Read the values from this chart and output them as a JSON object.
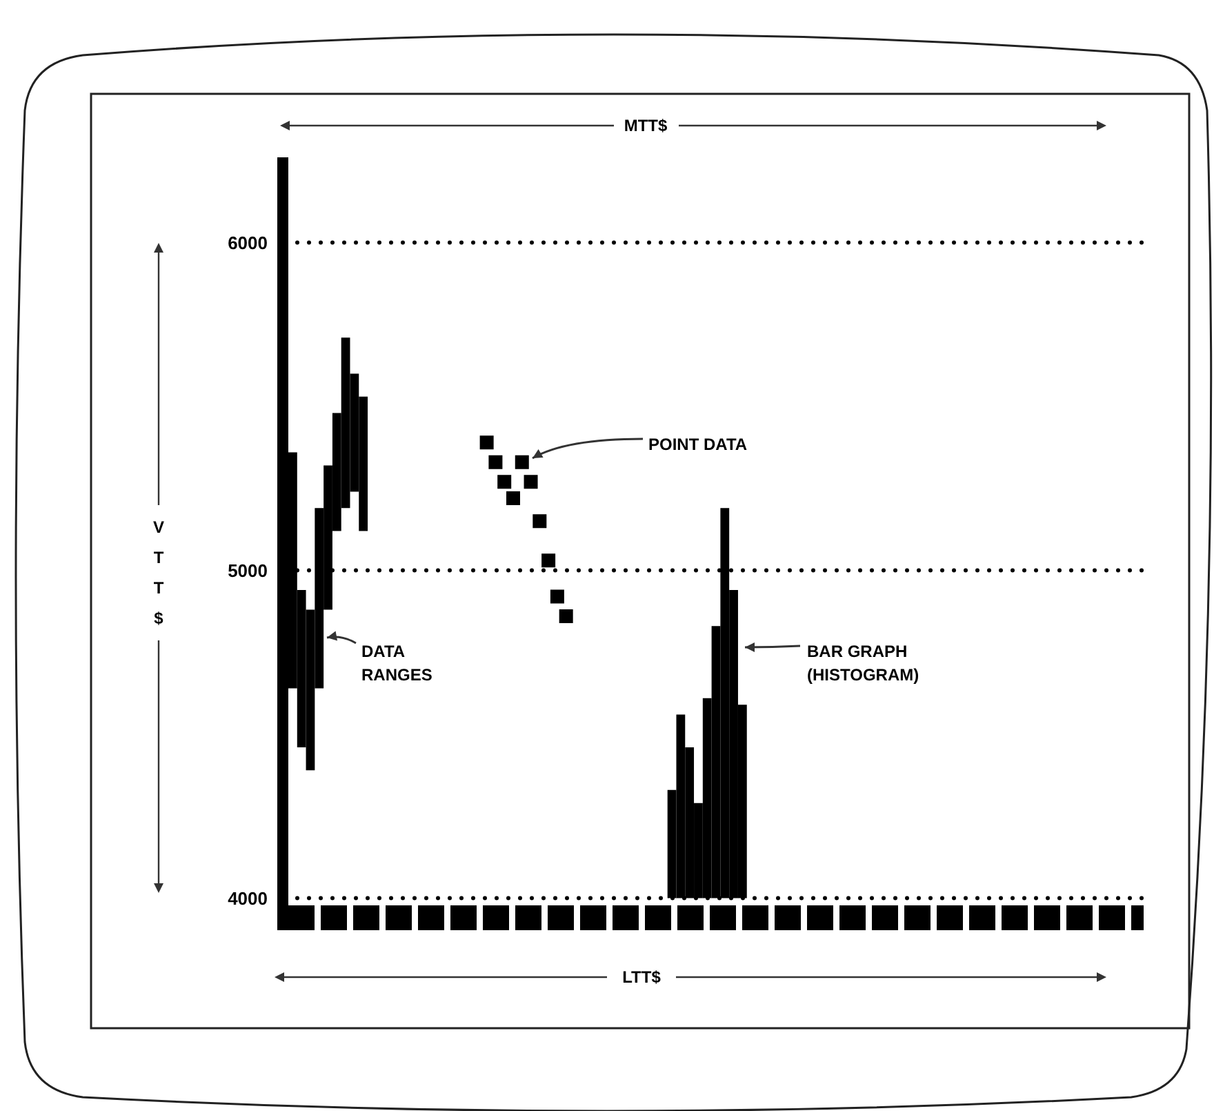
{
  "chart_data": {
    "type": "bar",
    "title": "MTT$",
    "xlabel": "LTT$",
    "ylabel": "VTT$",
    "categories": [
      null,
      null,
      null,
      null,
      null,
      null,
      null,
      null,
      null,
      null,
      null,
      null,
      null,
      null,
      null,
      null,
      null,
      null,
      null,
      null,
      null,
      null,
      null,
      null,
      null,
      null,
      null,
      null,
      null,
      null,
      null,
      null,
      null,
      null,
      null,
      null,
      null,
      null,
      null,
      null,
      null,
      null,
      null,
      null,
      null,
      null,
      null,
      null,
      null,
      null,
      null,
      null,
      null,
      null,
      null,
      null,
      null,
      null,
      null,
      null,
      null,
      null,
      null,
      null,
      null,
      null,
      null,
      null,
      null,
      null,
      null,
      null,
      null,
      null,
      null,
      null,
      null,
      null,
      null,
      null,
      null,
      null,
      null,
      null,
      null,
      null,
      null,
      null,
      null,
      null,
      null,
      null,
      null,
      null,
      null,
      null,
      null
    ],
    "series": [
      {
        "type": "bar",
        "color": "#000000",
        "base": [
          4640,
          4460,
          4390,
          4640,
          4880,
          5120,
          5190,
          5240,
          5120,
          null,
          null,
          null,
          null,
          null,
          null,
          null,
          null,
          null,
          null,
          null,
          null,
          null,
          null,
          null,
          null,
          null,
          null,
          null,
          null,
          null,
          null,
          null,
          null,
          null,
          null,
          null,
          null,
          null,
          null,
          null,
          null,
          null,
          null,
          4000,
          4000,
          4000,
          4000,
          4000,
          4000,
          4000,
          4000,
          4000,
          null,
          null,
          null,
          null,
          null,
          null,
          null,
          null,
          null,
          null,
          null,
          null,
          null,
          null,
          null,
          null,
          null,
          null,
          null,
          null,
          null,
          null,
          null,
          null,
          null,
          null,
          null,
          null,
          null,
          null,
          null,
          null,
          null,
          null,
          null,
          null,
          null,
          null,
          null,
          null,
          null,
          null,
          null,
          null,
          null
        ],
        "values": [
          720,
          480,
          490,
          550,
          440,
          360,
          520,
          360,
          410,
          null,
          null,
          null,
          null,
          null,
          null,
          null,
          null,
          null,
          null,
          null,
          null,
          null,
          null,
          null,
          null,
          null,
          null,
          null,
          null,
          null,
          null,
          null,
          null,
          null,
          null,
          null,
          null,
          null,
          null,
          null,
          null,
          null,
          null,
          330,
          560,
          460,
          290,
          610,
          830,
          1190,
          940,
          590,
          null,
          null,
          null,
          null,
          null,
          null,
          null,
          null,
          null,
          null,
          null,
          null,
          null,
          null,
          null,
          null,
          null,
          null,
          null,
          null,
          null,
          null,
          null,
          null,
          null,
          null,
          null,
          null,
          null,
          null,
          null,
          null,
          null,
          null,
          null,
          null,
          null,
          null,
          null,
          null,
          null,
          null,
          null,
          null,
          null
        ]
      },
      {
        "type": "scatter",
        "color": "#000000",
        "marker": "square",
        "values": [
          null,
          null,
          null,
          null,
          null,
          null,
          null,
          null,
          null,
          null,
          null,
          null,
          null,
          null,
          null,
          null,
          null,
          null,
          null,
          null,
          null,
          null,
          5390,
          5330,
          5270,
          5220,
          5330,
          5270,
          5150,
          5030,
          4920,
          4860,
          null,
          null,
          null,
          null,
          null,
          null,
          null,
          null,
          null,
          null,
          null,
          null,
          null,
          null,
          null,
          null,
          null,
          null,
          null,
          null,
          null,
          null,
          null,
          null,
          null,
          null,
          null,
          null,
          null,
          null,
          null,
          null,
          null,
          null,
          null,
          null,
          null,
          null,
          null,
          null,
          null,
          null,
          null,
          null,
          null,
          null,
          null,
          null,
          null,
          null,
          null,
          null,
          null,
          null,
          null,
          null,
          null,
          null,
          null,
          null,
          null,
          null,
          null,
          null,
          null
        ]
      }
    ],
    "ylim": [
      3940,
      6260
    ],
    "yticks": [
      4000,
      5000,
      6000
    ],
    "grid": "y",
    "tick_labels": "y",
    "annotations": [
      "DATA\nRANGES",
      "POINT DATA",
      "BAR GRAPH\n(HISTOGRAM)"
    ]
  }
}
